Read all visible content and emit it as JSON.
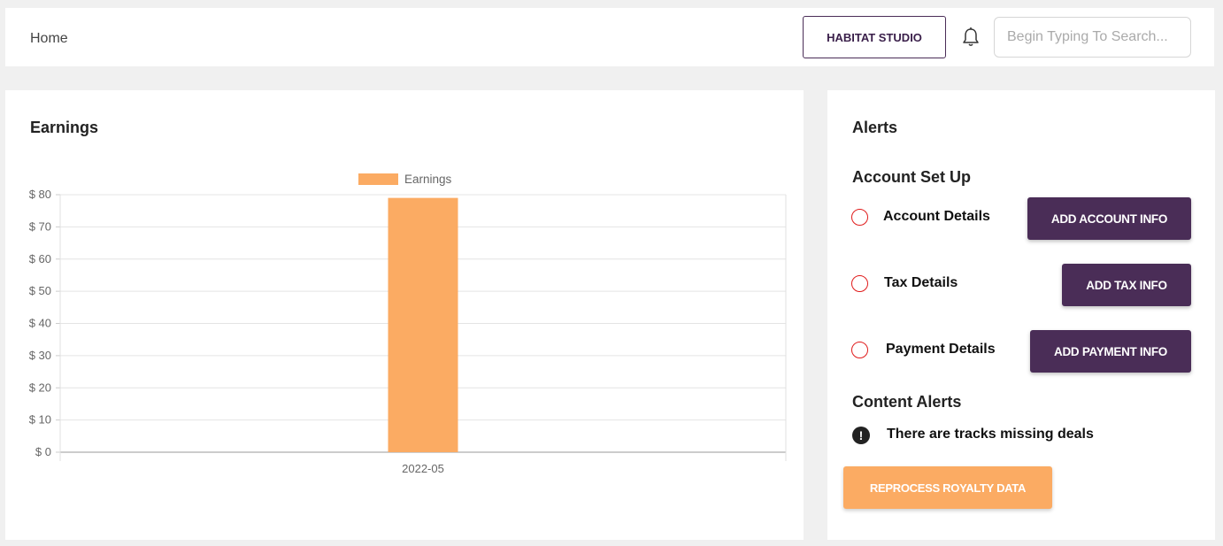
{
  "header": {
    "breadcrumb": "Home",
    "studio_button": "HABITAT STUDIO",
    "notification_icon": "bell-icon",
    "search_placeholder": "Begin Typing To Search..."
  },
  "earnings": {
    "title": "Earnings"
  },
  "chart_data": {
    "type": "bar",
    "categories": [
      "2022-05"
    ],
    "series": [
      {
        "name": "Earnings",
        "values": [
          79
        ],
        "color": "#fbab63"
      }
    ],
    "yticks": [
      "$ 0",
      "$ 10",
      "$ 20",
      "$ 30",
      "$ 40",
      "$ 50",
      "$ 60",
      "$ 70",
      "$ 80"
    ],
    "ylim": [
      0,
      80
    ],
    "legend": "top",
    "grid": true
  },
  "alerts": {
    "title": "Alerts",
    "setup_heading": "Account Set Up",
    "items": [
      {
        "label": "Account Details",
        "button": "ADD ACCOUNT INFO"
      },
      {
        "label": "Tax Details",
        "button": "ADD TAX INFO"
      },
      {
        "label": "Payment Details",
        "button": "ADD PAYMENT INFO"
      }
    ],
    "content_heading": "Content Alerts",
    "content_message": "There are tracks missing deals",
    "warning_icon": "exclamation-circle-icon",
    "reprocess_button": "REPROCESS ROYALTY DATA",
    "status_color": "#e01b1b",
    "accent_color": "#4a2d57"
  }
}
